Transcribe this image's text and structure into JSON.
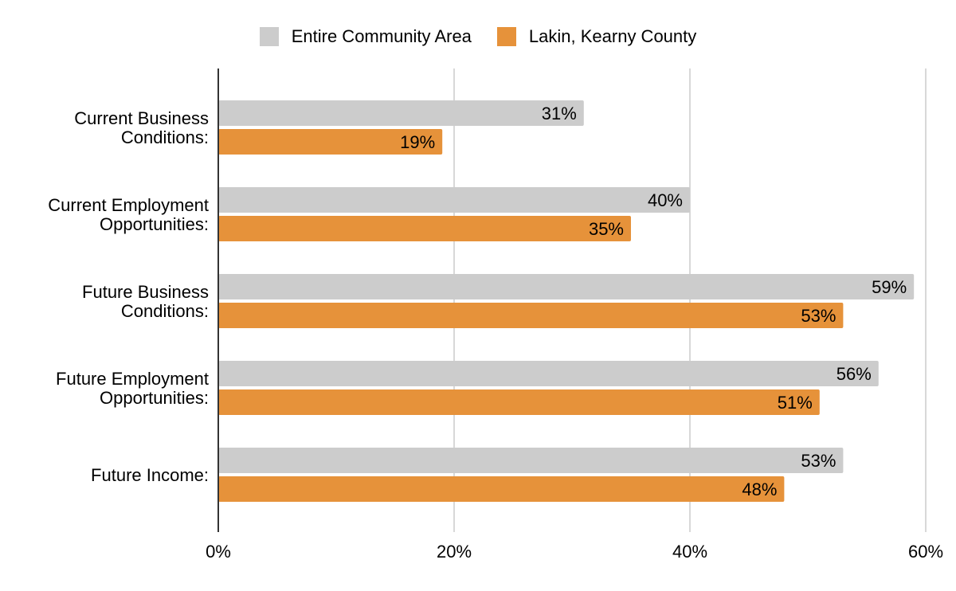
{
  "chart_data": {
    "type": "bar",
    "orientation": "horizontal",
    "title": "",
    "xlabel": "",
    "ylabel": "",
    "xlim": [
      0,
      60
    ],
    "x_ticks": [
      0,
      20,
      40,
      60
    ],
    "tick_suffix": "%",
    "grid": true,
    "legend_position": "top-center",
    "categories": [
      [
        "Current Business",
        "Conditions:"
      ],
      [
        "Current Employment",
        "Opportunities:"
      ],
      [
        "Future Business",
        "Conditions:"
      ],
      [
        "Future Employment",
        "Opportunities:"
      ],
      [
        "Future Income:"
      ]
    ],
    "series": [
      {
        "name": "Entire Community Area",
        "color": "#cccccc",
        "values": [
          31,
          40,
          59,
          56,
          53
        ]
      },
      {
        "name": "Lakin, Kearny County",
        "color": "#e6923a",
        "values": [
          19,
          35,
          53,
          51,
          48
        ]
      }
    ]
  }
}
